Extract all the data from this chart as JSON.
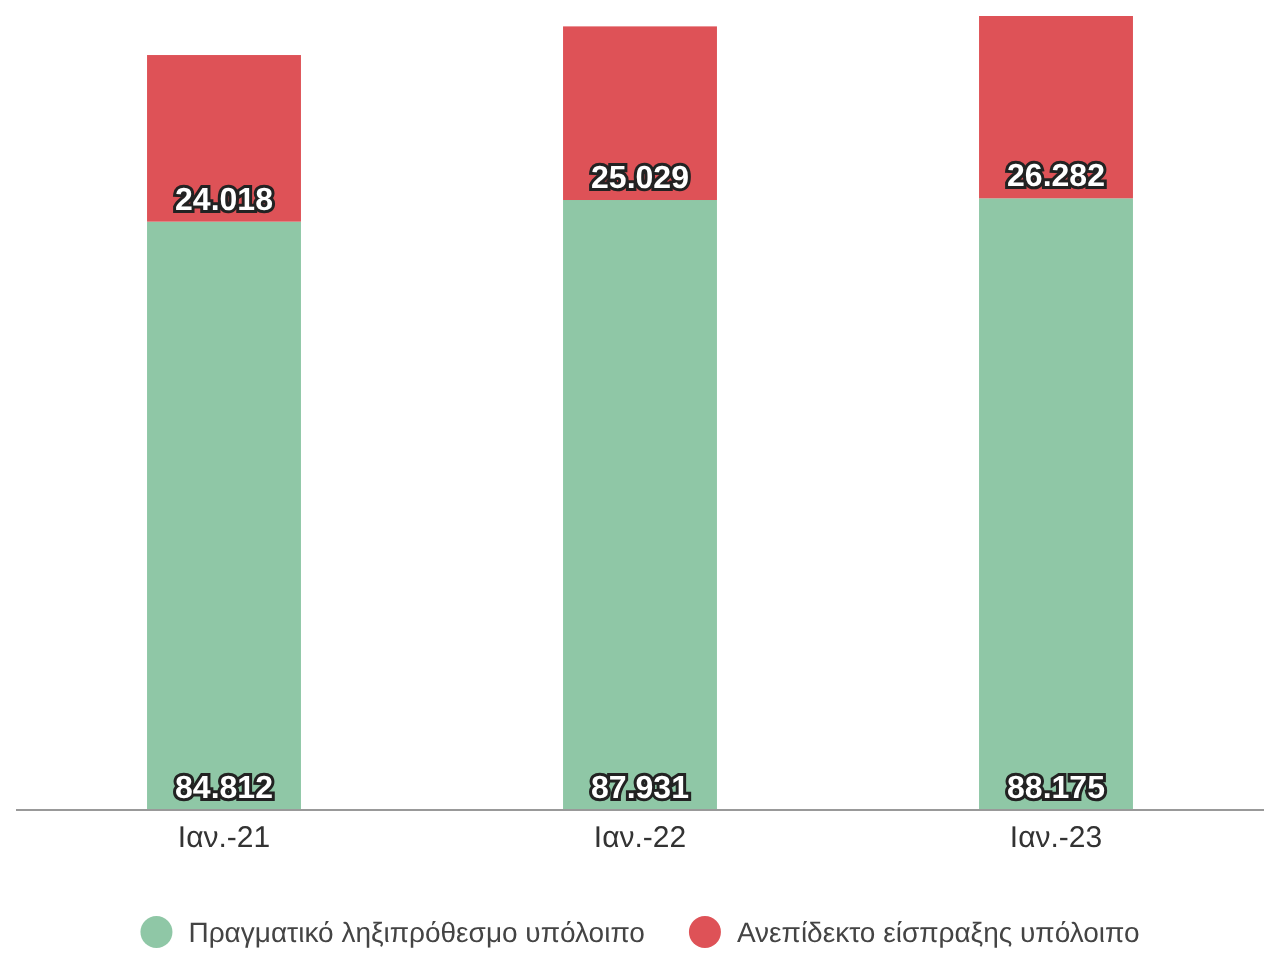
{
  "chart_data": {
    "type": "bar",
    "stacked": true,
    "data_labels": true,
    "legend": "bottom",
    "categories": [
      "Ιαν.-21",
      "Ιαν.-22",
      "Ιαν.-23"
    ],
    "series": [
      {
        "name": "Πραγματικό ληξιπρόθεσμο υπόλοιπο",
        "color": "#8fc7a6",
        "values": [
          84.812,
          87.931,
          88.175
        ]
      },
      {
        "name": "Ανεπίδεκτο είσπραξης υπόλοιπο",
        "color": "#de5257",
        "values": [
          24.018,
          25.029,
          26.282
        ]
      }
    ]
  }
}
